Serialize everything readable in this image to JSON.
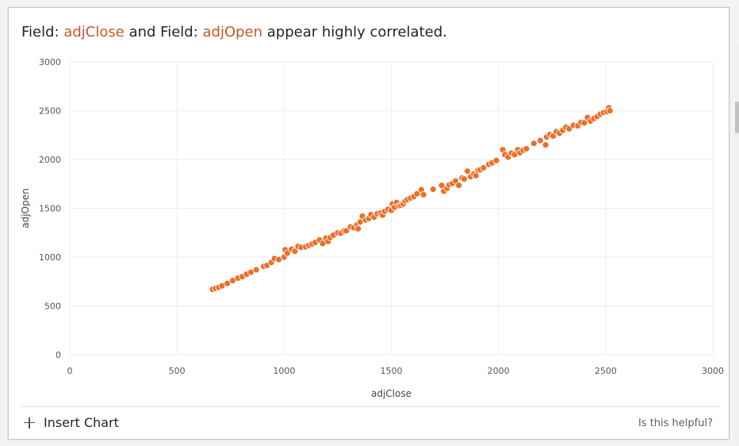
{
  "insight": {
    "prefix": "Field: ",
    "field_a": "adjClose",
    "middle": " and Field: ",
    "field_b": "adjOpen",
    "suffix": " appear highly correlated."
  },
  "footer": {
    "insert_chart_label": "Insert Chart",
    "helpful_label": "Is this helpful?"
  },
  "colors": {
    "point": "#e8702a",
    "field_highlight": "#c4582a",
    "grid": "#eeeeee",
    "tick_text": "#555555"
  },
  "icons": {
    "insert": "plus-icon"
  },
  "chart_data": {
    "type": "scatter",
    "xlabel": "adjClose",
    "ylabel": "adjOpen",
    "xlim": [
      0,
      3000
    ],
    "ylim": [
      0,
      3000
    ],
    "xticks": [
      0,
      500,
      1000,
      1500,
      2000,
      2500,
      3000
    ],
    "yticks": [
      0,
      500,
      1000,
      1500,
      2000,
      2500,
      3000
    ],
    "grid": true,
    "points": [
      [
        666,
        670
      ],
      [
        680,
        680
      ],
      [
        695,
        690
      ],
      [
        710,
        705
      ],
      [
        735,
        730
      ],
      [
        760,
        760
      ],
      [
        785,
        785
      ],
      [
        805,
        800
      ],
      [
        825,
        825
      ],
      [
        845,
        845
      ],
      [
        870,
        870
      ],
      [
        905,
        905
      ],
      [
        920,
        915
      ],
      [
        940,
        945
      ],
      [
        955,
        985
      ],
      [
        975,
        975
      ],
      [
        1000,
        1000
      ],
      [
        1005,
        1075
      ],
      [
        1015,
        1040
      ],
      [
        1035,
        1080
      ],
      [
        1050,
        1060
      ],
      [
        1065,
        1110
      ],
      [
        1080,
        1100
      ],
      [
        1100,
        1105
      ],
      [
        1115,
        1120
      ],
      [
        1130,
        1135
      ],
      [
        1145,
        1150
      ],
      [
        1165,
        1175
      ],
      [
        1180,
        1140
      ],
      [
        1195,
        1195
      ],
      [
        1205,
        1160
      ],
      [
        1215,
        1200
      ],
      [
        1230,
        1225
      ],
      [
        1250,
        1250
      ],
      [
        1265,
        1245
      ],
      [
        1280,
        1270
      ],
      [
        1290,
        1270
      ],
      [
        1310,
        1310
      ],
      [
        1325,
        1300
      ],
      [
        1340,
        1330
      ],
      [
        1345,
        1290
      ],
      [
        1355,
        1360
      ],
      [
        1365,
        1420
      ],
      [
        1380,
        1380
      ],
      [
        1395,
        1395
      ],
      [
        1405,
        1435
      ],
      [
        1420,
        1410
      ],
      [
        1435,
        1445
      ],
      [
        1450,
        1450
      ],
      [
        1460,
        1430
      ],
      [
        1470,
        1470
      ],
      [
        1485,
        1490
      ],
      [
        1500,
        1480
      ],
      [
        1505,
        1545
      ],
      [
        1515,
        1510
      ],
      [
        1525,
        1560
      ],
      [
        1535,
        1525
      ],
      [
        1545,
        1530
      ],
      [
        1555,
        1545
      ],
      [
        1565,
        1575
      ],
      [
        1575,
        1590
      ],
      [
        1590,
        1605
      ],
      [
        1605,
        1620
      ],
      [
        1620,
        1650
      ],
      [
        1640,
        1690
      ],
      [
        1650,
        1640
      ],
      [
        1695,
        1695
      ],
      [
        1735,
        1735
      ],
      [
        1745,
        1675
      ],
      [
        1760,
        1705
      ],
      [
        1770,
        1740
      ],
      [
        1785,
        1755
      ],
      [
        1800,
        1780
      ],
      [
        1815,
        1735
      ],
      [
        1830,
        1810
      ],
      [
        1840,
        1800
      ],
      [
        1855,
        1880
      ],
      [
        1870,
        1825
      ],
      [
        1885,
        1850
      ],
      [
        1895,
        1835
      ],
      [
        1905,
        1890
      ],
      [
        1915,
        1895
      ],
      [
        1930,
        1915
      ],
      [
        1955,
        1950
      ],
      [
        1970,
        1965
      ],
      [
        1990,
        1990
      ],
      [
        2020,
        2100
      ],
      [
        2030,
        2050
      ],
      [
        2045,
        2025
      ],
      [
        2060,
        2065
      ],
      [
        2075,
        2050
      ],
      [
        2090,
        2100
      ],
      [
        2100,
        2070
      ],
      [
        2115,
        2095
      ],
      [
        2130,
        2110
      ],
      [
        2165,
        2165
      ],
      [
        2195,
        2195
      ],
      [
        2220,
        2150
      ],
      [
        2225,
        2230
      ],
      [
        2240,
        2255
      ],
      [
        2255,
        2240
      ],
      [
        2270,
        2285
      ],
      [
        2285,
        2270
      ],
      [
        2300,
        2300
      ],
      [
        2315,
        2330
      ],
      [
        2330,
        2315
      ],
      [
        2350,
        2350
      ],
      [
        2370,
        2345
      ],
      [
        2385,
        2380
      ],
      [
        2400,
        2375
      ],
      [
        2415,
        2430
      ],
      [
        2430,
        2395
      ],
      [
        2445,
        2420
      ],
      [
        2460,
        2440
      ],
      [
        2475,
        2465
      ],
      [
        2490,
        2480
      ],
      [
        2505,
        2490
      ],
      [
        2515,
        2530
      ],
      [
        2520,
        2500
      ]
    ]
  }
}
